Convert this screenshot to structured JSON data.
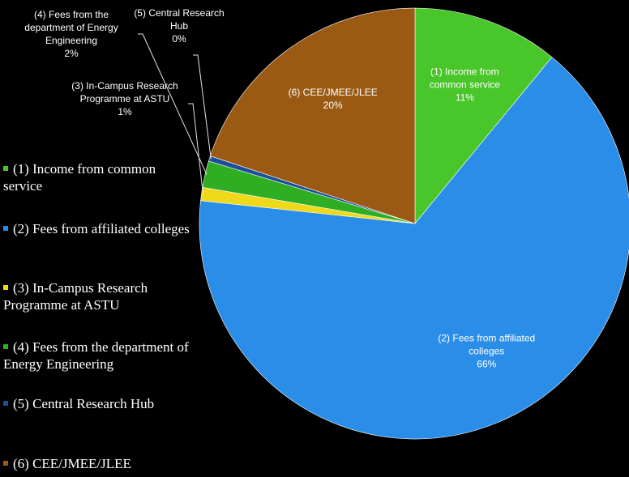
{
  "chart_data": {
    "type": "pie",
    "title": "",
    "start_angle_deg": 0,
    "direction": "clockwise",
    "slices": [
      {
        "legend": "(1) Income from common service",
        "label_lines": [
          "(1) Income from",
          "common service"
        ],
        "percent_label": "11%",
        "value": 11,
        "color": "#49c62a",
        "label_color": "#ffffff"
      },
      {
        "legend": "(2) Fees from affiliated colleges",
        "label_lines": [
          "(2) Fees from affiliated",
          "colleges"
        ],
        "percent_label": "66%",
        "value": 66,
        "color": "#2a8ee8",
        "label_color": "#ffffff"
      },
      {
        "legend": "(3) In-Campus Research Programme at ASTU",
        "label_lines": [
          "(3) In-Campus Research",
          "Programme at ASTU"
        ],
        "percent_label": "1%",
        "value": 1,
        "color": "#f0d81a",
        "label_color": "#ffffff"
      },
      {
        "legend": "(4) Fees from the department of Energy Engineering",
        "label_lines": [
          "(4) Fees from the",
          "department of Energy",
          "Engineering"
        ],
        "percent_label": "2%",
        "value": 2,
        "color": "#2fae24",
        "label_color": "#ffffff"
      },
      {
        "legend": "(5) Central Research Hub",
        "label_lines": [
          "(5) Central Research",
          "Hub"
        ],
        "percent_label": "0%",
        "value": 0.4,
        "color": "#1c4e9a",
        "label_color": "#ffffff"
      },
      {
        "legend": "(6) CEE/JMEE/JLEE",
        "label_lines": [
          "(6) CEE/JMEE/JLEE"
        ],
        "percent_label": "20%",
        "value": 20,
        "color": "#9a5a14",
        "label_color": "#ffffff"
      }
    ],
    "legend_position": "left"
  }
}
